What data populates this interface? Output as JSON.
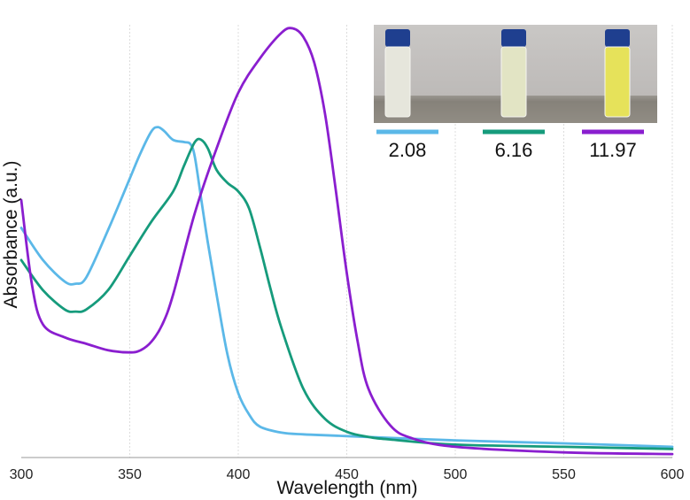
{
  "chart_data": {
    "type": "line",
    "title": "",
    "xlabel": "Wavelength (nm)",
    "ylabel": "Absorbance (a.u.)",
    "xlim": [
      300,
      600
    ],
    "ylim": [
      0,
      1
    ],
    "x_ticks": [
      300,
      350,
      400,
      450,
      500,
      550,
      600
    ],
    "y_ticks_shown": false,
    "grid": "vertical",
    "legend_position": "top-right",
    "inset": {
      "description": "photo of three vials with blue caps",
      "vial_colors": [
        "#e6e6dc",
        "#e2e4c4",
        "#e6e25a"
      ]
    },
    "series": [
      {
        "name": "2.08",
        "color": "#5bb8e8",
        "x": [
          300,
          310,
          320,
          325,
          330,
          340,
          350,
          355,
          360,
          363,
          366,
          370,
          375,
          378,
          380,
          383,
          386,
          390,
          395,
          400,
          405,
          410,
          420,
          430,
          450,
          500,
          550,
          600
        ],
        "y": [
          0.535,
          0.46,
          0.41,
          0.405,
          0.42,
          0.53,
          0.65,
          0.71,
          0.76,
          0.77,
          0.76,
          0.74,
          0.735,
          0.73,
          0.7,
          0.6,
          0.5,
          0.38,
          0.24,
          0.15,
          0.1,
          0.072,
          0.058,
          0.054,
          0.05,
          0.04,
          0.033,
          0.025
        ]
      },
      {
        "name": "6.16",
        "color": "#169b7c",
        "x": [
          300,
          310,
          320,
          325,
          330,
          340,
          350,
          360,
          370,
          375,
          380,
          383,
          386,
          390,
          395,
          400,
          405,
          410,
          415,
          420,
          430,
          440,
          450,
          460,
          470,
          500,
          550,
          600
        ],
        "y": [
          0.46,
          0.39,
          0.345,
          0.34,
          0.345,
          0.39,
          0.47,
          0.55,
          0.62,
          0.68,
          0.735,
          0.74,
          0.72,
          0.67,
          0.64,
          0.62,
          0.58,
          0.49,
          0.39,
          0.3,
          0.16,
          0.09,
          0.06,
          0.048,
          0.042,
          0.03,
          0.025,
          0.02
        ]
      },
      {
        "name": "11.97",
        "color": "#8a1ecf",
        "x": [
          300,
          305,
          310,
          320,
          330,
          340,
          350,
          355,
          360,
          365,
          370,
          380,
          390,
          400,
          410,
          420,
          425,
          430,
          435,
          440,
          445,
          450,
          455,
          460,
          470,
          480,
          500,
          550,
          600
        ],
        "y": [
          0.6,
          0.4,
          0.31,
          0.28,
          0.265,
          0.25,
          0.245,
          0.25,
          0.27,
          0.31,
          0.38,
          0.57,
          0.72,
          0.85,
          0.93,
          0.99,
          1.0,
          0.98,
          0.92,
          0.8,
          0.62,
          0.43,
          0.27,
          0.16,
          0.075,
          0.045,
          0.025,
          0.012,
          0.008
        ]
      }
    ]
  }
}
